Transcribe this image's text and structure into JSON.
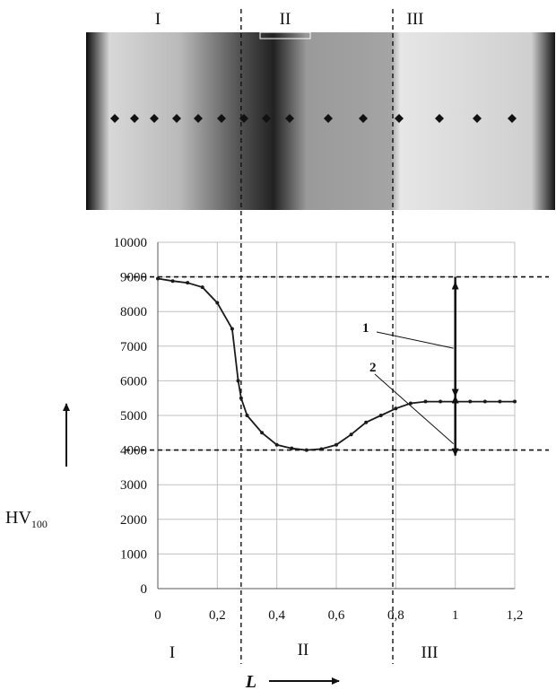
{
  "figure": {
    "micrograph_regions": [
      "I",
      "II",
      "III"
    ],
    "bottom_regions": [
      "I",
      "II",
      "III"
    ],
    "colors": {
      "line": "#1a1a1a",
      "grid": "#c0c0c0",
      "text": "#111111"
    }
  },
  "chart_data": {
    "type": "line",
    "title": "",
    "xlabel": "L",
    "ylabel_main": "HV",
    "ylabel_sub": "100",
    "xlim": [
      0,
      1.2
    ],
    "ylim": [
      0,
      10000
    ],
    "x_ticks": [
      0,
      0.2,
      0.4,
      0.6,
      0.8,
      1.0,
      1.2
    ],
    "x_tick_labels": [
      "0",
      "0,2",
      "0,4",
      "0,6",
      "0,8",
      "1",
      "1,2"
    ],
    "y_ticks": [
      0,
      1000,
      2000,
      3000,
      4000,
      5000,
      6000,
      7000,
      8000,
      9000,
      10000
    ],
    "y_tick_labels": [
      "0",
      "1000",
      "2000",
      "3000",
      "4000",
      "5000",
      "6000",
      "7000",
      "8000",
      "9000",
      "10000"
    ],
    "grid": true,
    "series": [
      {
        "x": [
          0,
          0.05,
          0.1,
          0.15,
          0.2,
          0.25,
          0.27,
          0.28,
          0.3,
          0.35,
          0.4,
          0.45,
          0.5,
          0.55,
          0.6,
          0.65,
          0.7,
          0.75,
          0.8,
          0.85,
          0.9,
          0.95,
          1.0,
          1.05,
          1.1,
          1.15,
          1.2
        ],
        "y": [
          8950,
          8880,
          8830,
          8700,
          8250,
          7500,
          6000,
          5500,
          5000,
          4500,
          4150,
          4050,
          4000,
          4030,
          4150,
          4450,
          4800,
          5000,
          5200,
          5350,
          5400,
          5400,
          5400,
          5400,
          5400,
          5400,
          5400
        ]
      }
    ],
    "reference_lines": [
      {
        "axis": "y",
        "value": 9000,
        "style": "dashed"
      },
      {
        "axis": "y",
        "value": 4000,
        "style": "dashed"
      },
      {
        "axis": "x",
        "value": 0.28,
        "style": "dashed"
      },
      {
        "axis": "x",
        "value": 0.79,
        "style": "dashed"
      }
    ],
    "annotations": [
      {
        "label": "1",
        "arrow_x": 1.0,
        "from": 5400,
        "to": 9000
      },
      {
        "label": "2",
        "arrow_x": 1.0,
        "from": 4000,
        "to": 5400
      }
    ]
  }
}
